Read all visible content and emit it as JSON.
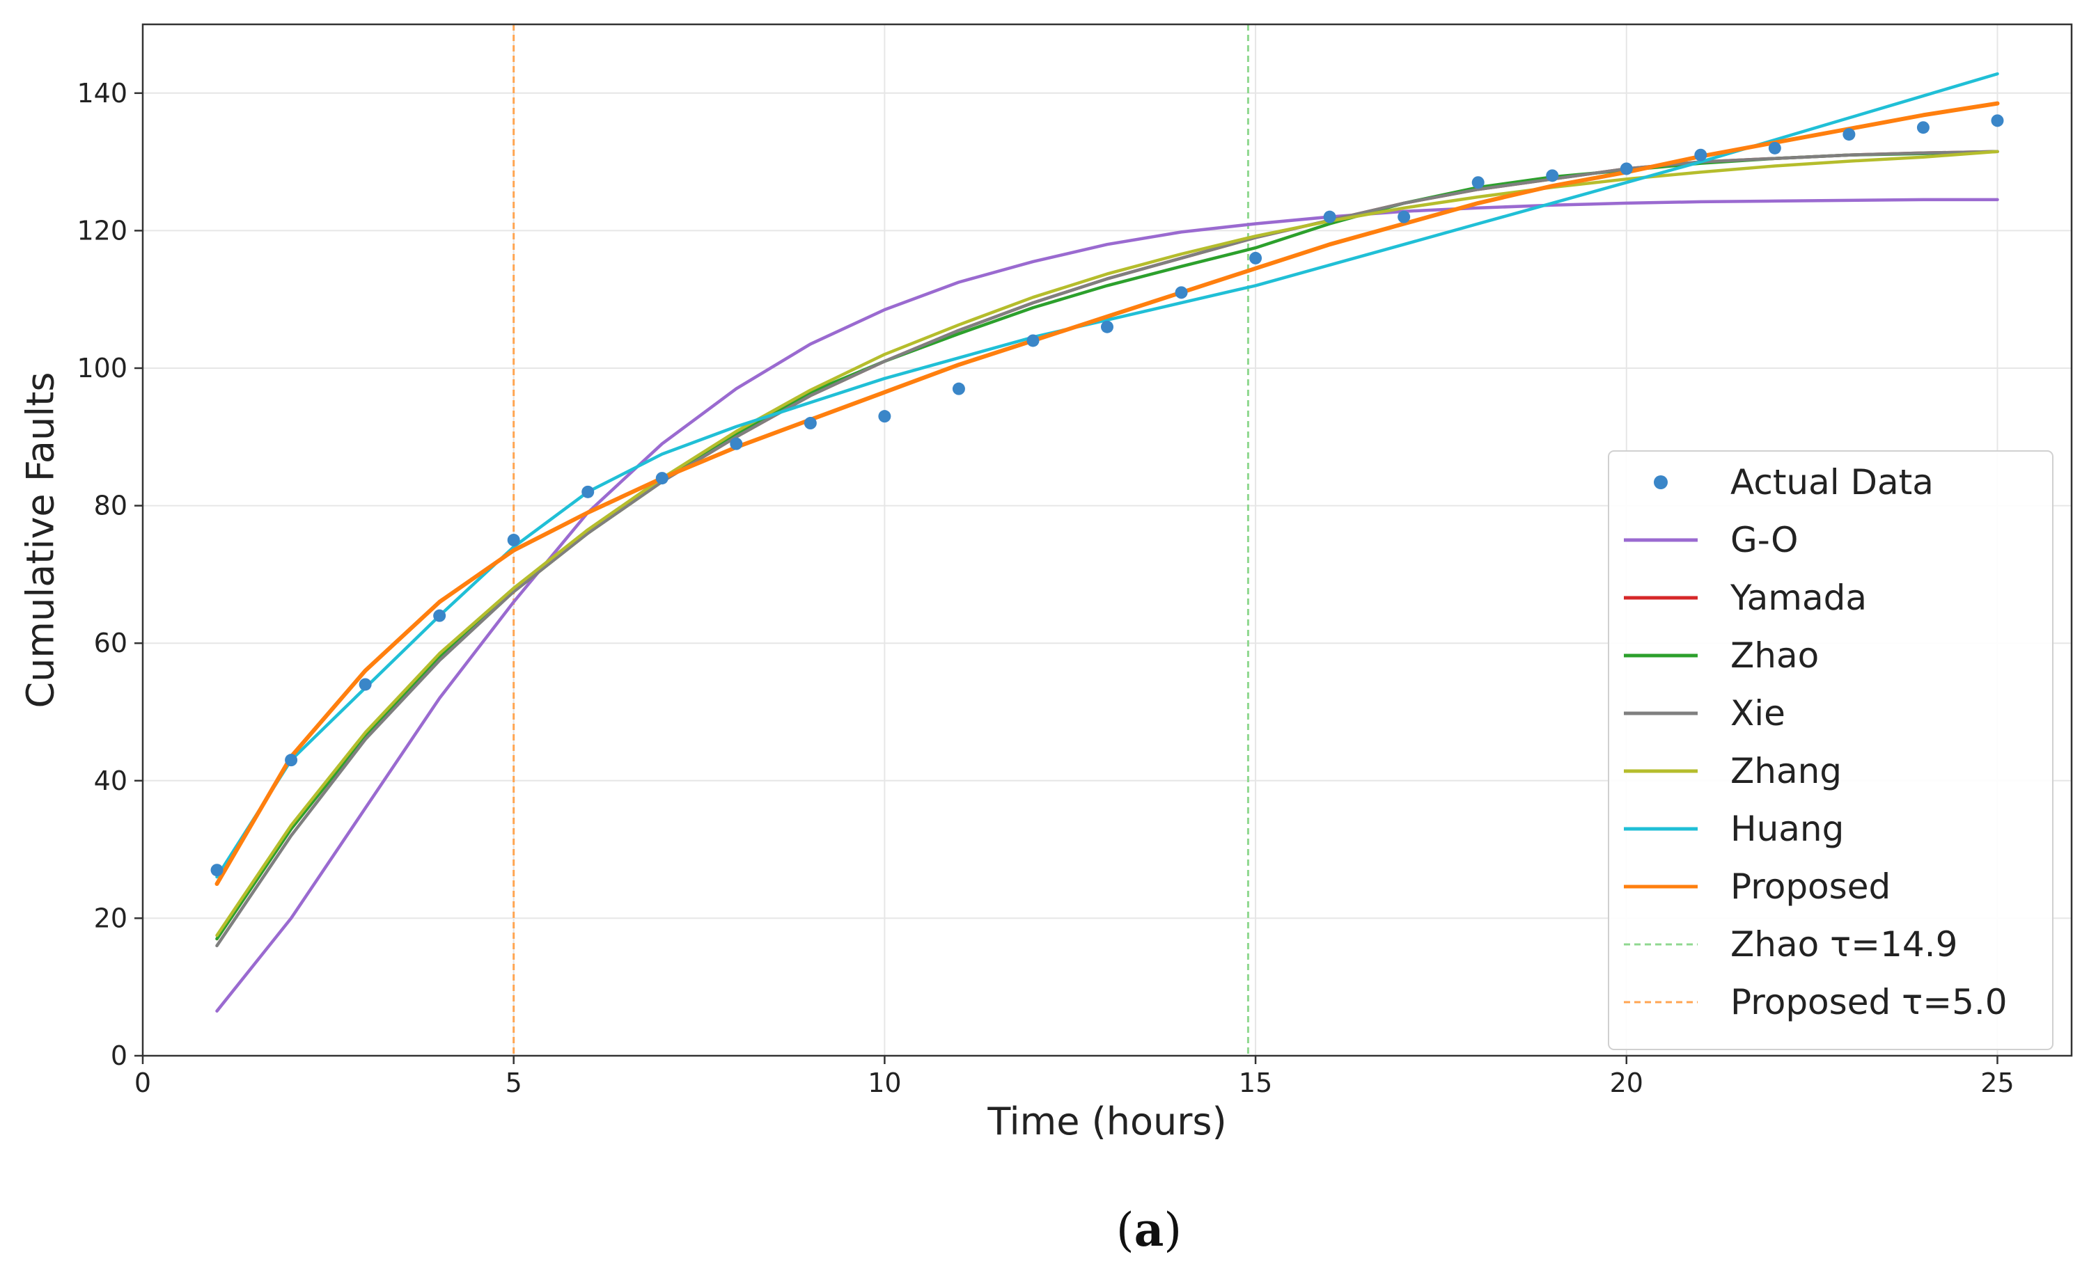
{
  "caption": {
    "open": "(",
    "letter": "a",
    "close": ")"
  },
  "chart_data": {
    "type": "line",
    "xlabel": "Time (hours)",
    "ylabel": "Cumulative Faults",
    "xlim": [
      0,
      26
    ],
    "ylim": [
      0,
      150
    ],
    "xticks": [
      0,
      5,
      10,
      15,
      20,
      25
    ],
    "yticks": [
      0,
      20,
      40,
      60,
      80,
      100,
      120,
      140
    ],
    "grid": true,
    "legend_position": "lower-right",
    "x": [
      1,
      2,
      3,
      4,
      5,
      6,
      7,
      8,
      9,
      10,
      11,
      12,
      13,
      14,
      15,
      16,
      17,
      18,
      19,
      20,
      21,
      22,
      23,
      24,
      25
    ],
    "scatter": {
      "name": "Actual Data",
      "color": "#3a86c8",
      "values": [
        27,
        43,
        54,
        64,
        75,
        82,
        84,
        89,
        92,
        93,
        97,
        104,
        106,
        111,
        116,
        122,
        122,
        127,
        128,
        129,
        131,
        132,
        134,
        135,
        136
      ]
    },
    "series": [
      {
        "name": "G-O",
        "color": "#9a6ad0",
        "values": [
          6.5,
          20,
          36,
          52,
          66,
          79,
          89,
          97,
          103.5,
          108.5,
          112.5,
          115.5,
          118,
          119.8,
          121,
          122,
          122.8,
          123.3,
          123.7,
          124,
          124.2,
          124.3,
          124.4,
          124.5,
          124.5
        ]
      },
      {
        "name": "Yamada",
        "color": "#d62728",
        "values": [
          17,
          33,
          46.5,
          58,
          67.5,
          76,
          83.5,
          90,
          96,
          101,
          105.5,
          109.5,
          113,
          116,
          119,
          121.5,
          124,
          126,
          127.5,
          129,
          130,
          130.5,
          131,
          131.3,
          131.5
        ]
      },
      {
        "name": "Zhao",
        "color": "#2ca02c",
        "values": [
          17,
          33,
          46.5,
          58,
          67.5,
          76,
          83.5,
          90.5,
          96.5,
          101,
          105,
          108.8,
          112,
          114.8,
          117.5,
          121,
          124,
          126.3,
          127.8,
          128.8,
          129.8,
          130.5,
          131,
          131.2,
          131.5
        ]
      },
      {
        "name": "Xie",
        "color": "#7f7f7f",
        "values": [
          16,
          32,
          46,
          57.5,
          67.5,
          76,
          83.5,
          90,
          96,
          101,
          105.5,
          109.5,
          113,
          116,
          119,
          121.5,
          124,
          126,
          127.5,
          129,
          130,
          130.5,
          131,
          131.3,
          131.5
        ]
      },
      {
        "name": "Zhang",
        "color": "#b5bd2c",
        "values": [
          17.5,
          33.5,
          47,
          58.5,
          68,
          76.5,
          84,
          90.8,
          96.8,
          102,
          106.3,
          110.3,
          113.7,
          116.6,
          119.2,
          121.4,
          123.3,
          124.9,
          126.3,
          127.5,
          128.5,
          129.4,
          130.1,
          130.7,
          131.5
        ]
      },
      {
        "name": "Huang",
        "color": "#20bfd6",
        "values": [
          26,
          43,
          53.5,
          64,
          74,
          82,
          87.5,
          91.5,
          95,
          98.5,
          101.5,
          104.5,
          107,
          109.5,
          112,
          115,
          118,
          121,
          124,
          127,
          130,
          133.2,
          136.4,
          139.6,
          142.8
        ]
      },
      {
        "name": "Proposed",
        "color": "#ff7f0e",
        "values": [
          25,
          43.5,
          56,
          66,
          73.5,
          79,
          84,
          88.5,
          92.5,
          96.5,
          100.5,
          104,
          107.5,
          111,
          114.5,
          118,
          121,
          124,
          126.5,
          128.5,
          130.8,
          132.8,
          134.8,
          136.8,
          138.5
        ]
      }
    ],
    "vlines": [
      {
        "name": "Zhao τ=14.9",
        "x": 14.9,
        "color": "#90d890"
      },
      {
        "name": "Proposed τ=5.0",
        "x": 5.0,
        "color": "#ffa552"
      }
    ]
  }
}
